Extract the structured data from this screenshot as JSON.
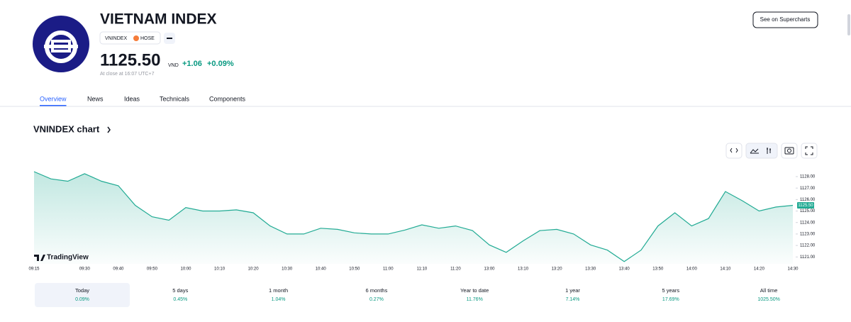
{
  "header": {
    "title": "VIETNAM INDEX",
    "symbol": "VNINDEX",
    "exchange": "HOSE",
    "price": "1125.50",
    "currency": "VND",
    "change": "+1.06",
    "change_percent": "+0.09%",
    "status": "At close at 16:07 UTC+7",
    "button": "See on Supercharts"
  },
  "tabs": [
    "Overview",
    "News",
    "Ideas",
    "Technicals",
    "Components"
  ],
  "section_title": "VNINDEX chart",
  "brand": "TradingView",
  "chart_data": {
    "type": "area",
    "color": "#22ab94",
    "categories": [
      "09:15",
      null,
      null,
      "09:30",
      null,
      "09:40",
      null,
      "09:50",
      null,
      "10:00",
      null,
      "10:10",
      null,
      "10:20",
      null,
      "10:30",
      null,
      "10:40",
      null,
      "10:50",
      null,
      "11:00",
      null,
      "11:10",
      null,
      "11:20",
      null,
      "13:00",
      null,
      "13:10",
      null,
      "13:20",
      null,
      "13:30",
      null,
      "13:40",
      null,
      "13:50",
      null,
      "14:00",
      null,
      "14:10",
      null,
      "14:20",
      null,
      "14:30"
    ],
    "values": [
      1128.43,
      1127.8,
      1127.6,
      1128.25,
      1127.6,
      1127.2,
      1125.5,
      1124.5,
      1124.2,
      1125.3,
      1125.0,
      1125.0,
      1125.1,
      1124.85,
      1123.7,
      1123.0,
      1123.0,
      1123.5,
      1123.4,
      1123.1,
      1123.0,
      1123.0,
      1123.35,
      1123.8,
      1123.5,
      1123.7,
      1123.3,
      1122.05,
      1121.4,
      1122.4,
      1123.3,
      1123.4,
      1123.0,
      1122.05,
      1121.6,
      1120.6,
      1121.6,
      1123.7,
      1124.85,
      1123.7,
      1124.35,
      1126.7,
      1125.9,
      1125.0,
      1125.35,
      1125.5
    ],
    "ylim": [
      1120.4,
      1129.05
    ],
    "yticks": [
      {
        "value": 1121,
        "label": "1121.00"
      },
      {
        "value": 1122,
        "label": "1122.00"
      },
      {
        "value": 1123,
        "label": "1123.00"
      },
      {
        "value": 1124,
        "label": "1124.00"
      },
      {
        "value": 1125,
        "label": "1125.00"
      },
      {
        "value": 1126,
        "label": "1126.00"
      },
      {
        "value": 1127,
        "label": "1127.00"
      },
      {
        "value": 1128,
        "label": "1128.00"
      }
    ],
    "price_tag": {
      "value": 1125.5,
      "label": "1125.50"
    }
  },
  "periods": [
    {
      "label": "Today",
      "change": "0.09%"
    },
    {
      "label": "5 days",
      "change": "0.45%"
    },
    {
      "label": "1 month",
      "change": "1.04%"
    },
    {
      "label": "6 months",
      "change": "0.27%"
    },
    {
      "label": "Year to date",
      "change": "11.76%"
    },
    {
      "label": "1 year",
      "change": "7.14%"
    },
    {
      "label": "5 years",
      "change": "17.69%"
    },
    {
      "label": "All time",
      "change": "1025.50%"
    }
  ]
}
